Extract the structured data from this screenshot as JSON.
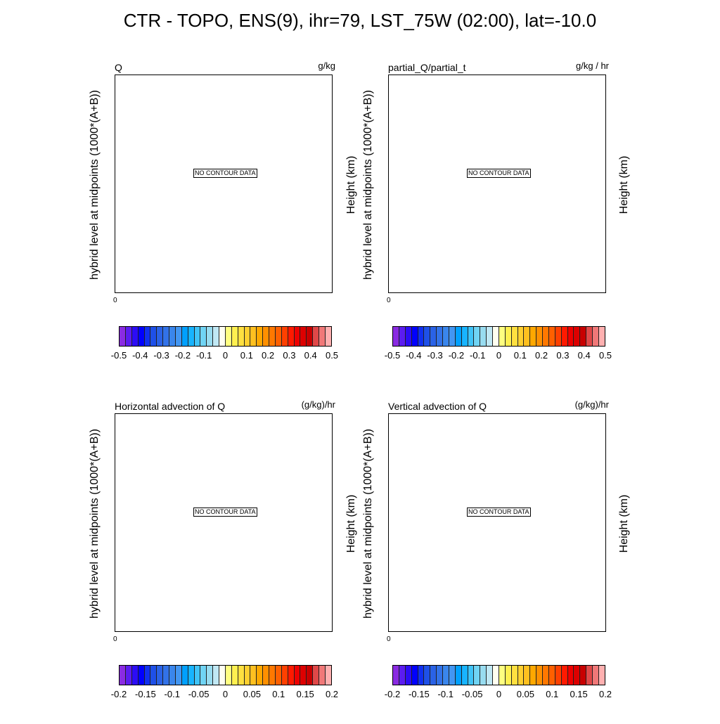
{
  "title": "CTR - TOPO, ENS(9), ihr=79, LST_75W (02:00), lat=-10.0",
  "colormap": [
    "#8a2be2",
    "#5b1cf0",
    "#2c0cf5",
    "#0000ff",
    "#1030f0",
    "#1e50e8",
    "#2a62e6",
    "#3272e8",
    "#3a86ec",
    "#4296f2",
    "#00a0ff",
    "#18b4ff",
    "#40c4f8",
    "#70d4f4",
    "#98dcf0",
    "#c0e8f4",
    "#fffff0",
    "#ffff80",
    "#fff050",
    "#ffe040",
    "#ffd030",
    "#ffc020",
    "#ffa800",
    "#ff9000",
    "#ff7800",
    "#ff6000",
    "#ff4000",
    "#ff1a00",
    "#ee0000",
    "#dd0000",
    "#c80000",
    "#e04848",
    "#f07878",
    "#ffb0b0"
  ],
  "chart_data": [
    {
      "type": "heatmap",
      "title": "Q",
      "units": "g/kg",
      "ylabel_left": "hybrid level at midpoints (1000*(A+B))",
      "ylabel_right": "Height (km)",
      "x_tick_labels": [
        "0"
      ],
      "message": "NO CONTOUR DATA",
      "colorbar_range": [
        -0.5,
        0.5
      ],
      "colorbar_ticks": [
        "-0.5",
        "-0.4",
        "-0.3",
        "-0.2",
        "-0.1",
        "0",
        "0.1",
        "0.2",
        "0.3",
        "0.4",
        "0.5"
      ]
    },
    {
      "type": "heatmap",
      "title": "partial_Q/partial_t",
      "units": "g/kg / hr",
      "ylabel_left": "hybrid level at midpoints (1000*(A+B))",
      "ylabel_right": "Height (km)",
      "x_tick_labels": [
        "0"
      ],
      "message": "NO CONTOUR DATA",
      "colorbar_range": [
        -0.5,
        0.5
      ],
      "colorbar_ticks": [
        "-0.5",
        "-0.4",
        "-0.3",
        "-0.2",
        "-0.1",
        "0",
        "0.1",
        "0.2",
        "0.3",
        "0.4",
        "0.5"
      ]
    },
    {
      "type": "heatmap",
      "title": "Horizontal advection of Q",
      "units": "(g/kg)/hr",
      "ylabel_left": "hybrid level at midpoints (1000*(A+B))",
      "ylabel_right": "Height (km)",
      "x_tick_labels": [
        "0"
      ],
      "message": "NO CONTOUR DATA",
      "colorbar_range": [
        -0.2,
        0.2
      ],
      "colorbar_ticks": [
        "-0.2",
        "-0.15",
        "-0.1",
        "-0.05",
        "0",
        "0.05",
        "0.1",
        "0.15",
        "0.2"
      ]
    },
    {
      "type": "heatmap",
      "title": "Vertical advection of Q",
      "units": "(g/kg)/hr",
      "ylabel_left": "hybrid level at midpoints (1000*(A+B))",
      "ylabel_right": "Height (km)",
      "x_tick_labels": [
        "0"
      ],
      "message": "NO CONTOUR DATA",
      "colorbar_range": [
        -0.2,
        0.2
      ],
      "colorbar_ticks": [
        "-0.2",
        "-0.15",
        "-0.1",
        "-0.05",
        "0",
        "0.05",
        "0.1",
        "0.15",
        "0.2"
      ]
    }
  ]
}
